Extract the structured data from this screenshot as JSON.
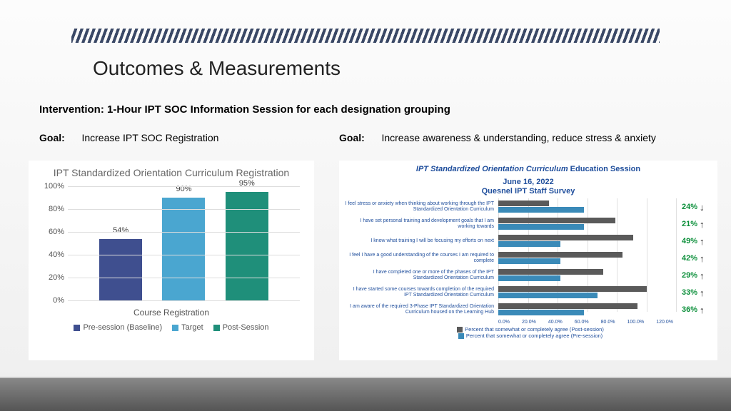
{
  "header": {
    "title": "Outcomes & Measurements"
  },
  "intervention": "Intervention: 1-Hour IPT SOC Information Session for each designation grouping",
  "goal_label": "Goal:",
  "goal_left": "Increase IPT SOC Registration",
  "goal_right": "Increase awareness & understanding, reduce stress & anxiety",
  "left_chart": {
    "title": "IPT Standardized Orientation Curriculum Registration",
    "ylim": 100,
    "ytick_step": 20,
    "bars": [
      {
        "label": "Pre-session (Baseline)",
        "value": 54,
        "color": "#3f4f8f"
      },
      {
        "label": "Target",
        "value": 90,
        "color": "#4aa6d0"
      },
      {
        "label": "Post-Session",
        "value": 95,
        "color": "#1f8f7a"
      }
    ],
    "xaxis": "Course Registration"
  },
  "right_chart": {
    "title_emph": "IPT Standardized Orientation Curriculum",
    "title_rest": " Education Session",
    "date": "June 16, 2022",
    "subtitle": "Quesnel IPT Staff Survey",
    "xmax": 120,
    "xticks": [
      "0.0%",
      "20.0%",
      "40.0%",
      "60.0%",
      "80.0%",
      "100.0%",
      "120.0%"
    ],
    "post_color": "#5a5a5a",
    "pre_color": "#3a8ab8",
    "legend_post": "Percent that somewhat or completely agree (Post-session)",
    "legend_pre": "Percent that somewhat or completely agree (Pre-session)",
    "rows": [
      {
        "label": "I feel stress or anxiety when thinking about working through the IPT Standardized Orientation Curriculum",
        "post": 34,
        "pre": 58,
        "delta": "24%",
        "dir": "down"
      },
      {
        "label": "I have set personal training and development goals that I am working towards",
        "post": 79,
        "pre": 58,
        "delta": "21%",
        "dir": "up"
      },
      {
        "label": "I know what training I will be focusing my efforts on next",
        "post": 91,
        "pre": 42,
        "delta": "49%",
        "dir": "up"
      },
      {
        "label": "I feel I have a good understanding of the courses I am required to complete",
        "post": 84,
        "pre": 42,
        "delta": "42%",
        "dir": "up"
      },
      {
        "label": "I have completed one or more of the phases of the IPT Standardized Orientation Curriculum",
        "post": 71,
        "pre": 42,
        "delta": "29%",
        "dir": "up"
      },
      {
        "label": "I have started some courses towards completion of the required IPT Standardized Orientation Curriculum",
        "post": 100,
        "pre": 67,
        "delta": "33%",
        "dir": "up"
      },
      {
        "label": "I am aware of the required 3-Phase IPT Standardized Orientation Curriculum housed on the Learning Hub",
        "post": 94,
        "pre": 58,
        "delta": "36%",
        "dir": "up"
      }
    ]
  }
}
